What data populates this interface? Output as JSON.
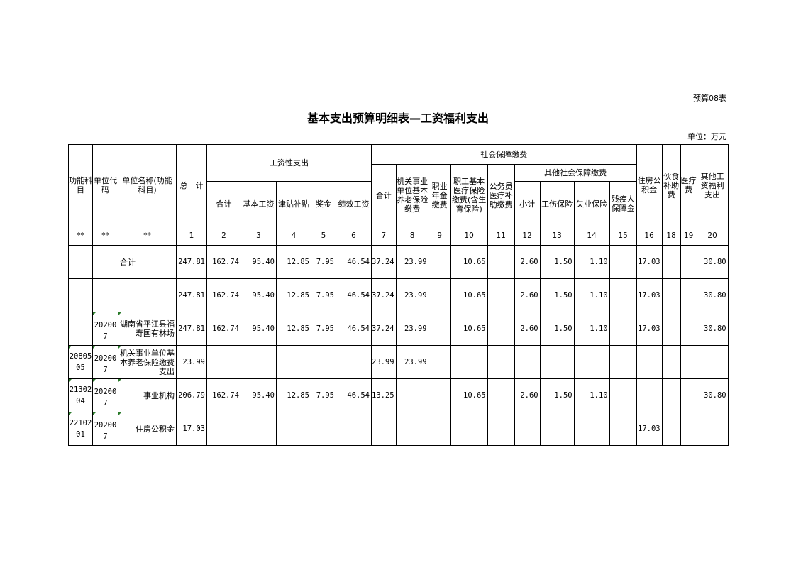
{
  "form_id": "预算08表",
  "title": "基本支出预算明细表—工资福利支出",
  "unit": "单位：万元",
  "headers": {
    "func": "功能科目",
    "code": "单位代码",
    "name": "单位名称(功能科目)",
    "total": "总　计",
    "wage": "工资性支出",
    "wage_sum": "合计",
    "basic": "基本工资",
    "allow": "津贴补贴",
    "bonus": "奖金",
    "perf": "绩效工资",
    "social": "社会保障缴费",
    "soc_sum": "合计",
    "pension": "机关事业单位基本养老保险缴费",
    "annuity": "职业年金缴费",
    "medical": "职工基本医疗保险缴费(含生育保险)",
    "civil_med": "公务员医疗补助缴费",
    "other_soc": "其他社会保障缴费",
    "sub": "小计",
    "injury": "工伤保险",
    "unemp": "失业保险",
    "disab": "残疾人保障金",
    "housing": "住房公积金",
    "meal": "伙食补助费",
    "med_fee": "医疗费",
    "other": "其他工资福利支出"
  },
  "col_numbers": [
    "**",
    "**",
    "**",
    "1",
    "2",
    "3",
    "4",
    "5",
    "6",
    "7",
    "8",
    "9",
    "10",
    "11",
    "12",
    "13",
    "14",
    "15",
    "16",
    "18",
    "19",
    "20"
  ],
  "rows": [
    [
      "",
      "",
      "合计",
      "247.81",
      "162.74",
      "95.40",
      "12.85",
      "7.95",
      "46.54",
      "37.24",
      "23.99",
      "",
      "10.65",
      "",
      "2.60",
      "1.50",
      "1.10",
      "",
      "17.03",
      "",
      "",
      "30.80"
    ],
    [
      "",
      "",
      "",
      "247.81",
      "162.74",
      "95.40",
      "12.85",
      "7.95",
      "46.54",
      "37.24",
      "23.99",
      "",
      "10.65",
      "",
      "2.60",
      "1.50",
      "1.10",
      "",
      "17.03",
      "",
      "",
      "30.80"
    ],
    [
      "",
      "202007",
      "湖南省平江县福寿国有林场",
      "247.81",
      "162.74",
      "95.40",
      "12.85",
      "7.95",
      "46.54",
      "37.24",
      "23.99",
      "",
      "10.65",
      "",
      "2.60",
      "1.50",
      "1.10",
      "",
      "17.03",
      "",
      "",
      "30.80"
    ],
    [
      "2080505",
      "202007",
      "机关事业单位基本养老保险缴费支出",
      "23.99",
      "",
      "",
      "",
      "",
      "",
      "23.99",
      "23.99",
      "",
      "",
      "",
      "",
      "",
      "",
      "",
      "",
      "",
      "",
      ""
    ],
    [
      "2130204",
      "202007",
      "事业机构",
      "206.79",
      "162.74",
      "95.40",
      "12.85",
      "7.95",
      "46.54",
      "13.25",
      "",
      "",
      "10.65",
      "",
      "2.60",
      "1.50",
      "1.10",
      "",
      "",
      "",
      "",
      "30.80"
    ],
    [
      "2210201",
      "202007",
      "住房公积金",
      "17.03",
      "",
      "",
      "",
      "",
      "",
      "",
      "",
      "",
      "",
      "",
      "",
      "",
      "",
      "",
      "17.03",
      "",
      "",
      ""
    ]
  ]
}
